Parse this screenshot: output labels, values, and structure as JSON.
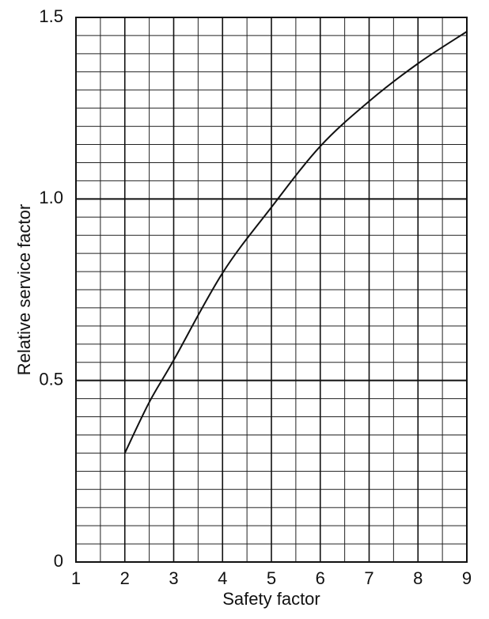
{
  "chart_data": {
    "type": "line",
    "xlabel": "Safety factor",
    "ylabel": "Relative service factor",
    "series": [
      {
        "color": "#111111",
        "x": [
          2,
          2.5,
          3,
          4,
          5,
          6,
          7,
          8,
          9
        ],
        "values": [
          0.3,
          0.44,
          0.556,
          0.796,
          0.977,
          1.145,
          1.269,
          1.373,
          1.461
        ]
      }
    ],
    "xlim": [
      1,
      9
    ],
    "xticks": [
      1,
      2,
      3,
      4,
      5,
      6,
      7,
      8,
      9
    ],
    "ylim": [
      0,
      1.5
    ],
    "yticks": [
      0,
      0.5,
      {
        "value": 1,
        "label": "1.0"
      },
      1.5
    ],
    "minor_xgrid": [
      1.5,
      2.5,
      3.5,
      4.5,
      5.5,
      6.5,
      7.5,
      8.5
    ],
    "minor_ygrid": [
      0.05,
      0.1,
      0.15,
      0.2,
      0.25,
      0.3,
      0.35,
      0.4,
      0.45,
      0.55,
      0.6,
      0.65,
      0.7,
      0.75,
      0.8,
      0.85,
      0.9,
      0.95,
      1.05,
      1.1,
      1.15,
      1.2,
      1.25,
      1.3,
      1.35,
      1.4,
      1.45
    ],
    "grid": true
  }
}
